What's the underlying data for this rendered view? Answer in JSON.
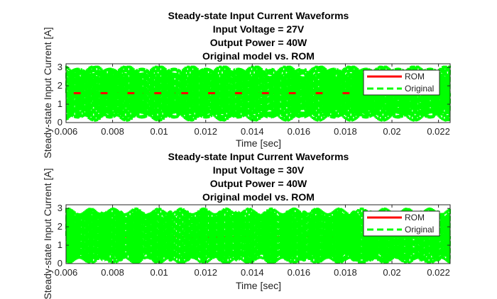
{
  "chart_data": [
    {
      "type": "line",
      "title": [
        "Steady-state Input Current Waveforms",
        "Input Voltage = 27V",
        "Output Power = 40W",
        "Original model vs. ROM"
      ],
      "xlabel": "Time [sec]",
      "ylabel": "Steady-state Input Current [A]",
      "xlim": [
        0.006,
        0.0225
      ],
      "ylim": [
        0,
        3.2
      ],
      "xticks": [
        "0.006",
        "0.008",
        "0.01",
        "0.012",
        "0.014",
        "0.016",
        "0.018",
        "0.02",
        "0.022"
      ],
      "xtick_values": [
        0.006,
        0.008,
        0.01,
        0.012,
        0.014,
        0.016,
        0.018,
        0.02,
        0.022
      ],
      "yticks": [
        "0",
        "1",
        "2",
        "3"
      ],
      "ytick_values": [
        0,
        1,
        2,
        3
      ],
      "legend_position": "right",
      "series": [
        {
          "name": "ROM",
          "color": "#ff0000",
          "style": "solid",
          "level": 1.6,
          "band": 0.07
        },
        {
          "name": "Original",
          "color": "#00ff00",
          "style": "dashed",
          "mean": 1.6,
          "min": 0.0,
          "max": 3.1,
          "pattern": "beat"
        }
      ]
    },
    {
      "type": "line",
      "title": [
        "Steady-state Input Current Waveforms",
        "Input Voltage = 30V",
        "Output Power = 40W",
        "Original model vs. ROM"
      ],
      "xlabel": "Time [sec]",
      "ylabel": "Steady-state Input Current [A]",
      "xlim": [
        0.006,
        0.0225
      ],
      "ylim": [
        0,
        3.2
      ],
      "xticks": [
        "0.006",
        "0.008",
        "0.01",
        "0.012",
        "0.014",
        "0.016",
        "0.018",
        "0.02",
        "0.022"
      ],
      "xtick_values": [
        0.006,
        0.008,
        0.01,
        0.012,
        0.014,
        0.016,
        0.018,
        0.02,
        0.022
      ],
      "yticks": [
        "0",
        "1",
        "2",
        "3"
      ],
      "ytick_values": [
        0,
        1,
        2,
        3
      ],
      "legend_position": "right",
      "series": [
        {
          "name": "ROM",
          "color": "#ff0000",
          "style": "solid",
          "level": 1.45,
          "band": 0.05
        },
        {
          "name": "Original",
          "color": "#00ff00",
          "style": "dashed",
          "mean": 1.5,
          "min": 0.0,
          "max": 3.1,
          "pattern": "dense"
        }
      ]
    }
  ]
}
